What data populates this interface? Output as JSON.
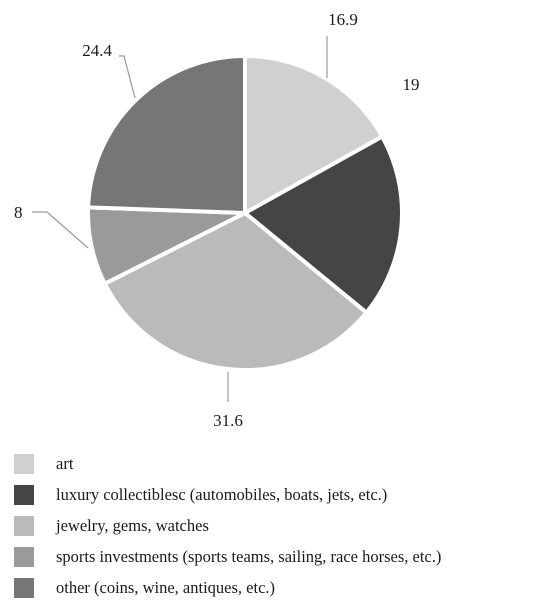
{
  "chart_data": {
    "type": "pie",
    "title": "",
    "start_angle_deg": 0,
    "direction": "clockwise",
    "slices": [
      {
        "label": "art",
        "value": 16.9,
        "value_label": "16.9",
        "color": "#d0d0d0"
      },
      {
        "label": "luxury collectiblesc (automobiles, boats, jets, etc.)",
        "value": 19,
        "value_label": "19",
        "color": "#454545"
      },
      {
        "label": "jewelry, gems, watches",
        "value": 31.6,
        "value_label": "31.6",
        "color": "#bababa"
      },
      {
        "label": "sports investments (sports teams, sailing, race horses, etc.)",
        "value": 8,
        "value_label": "8",
        "color": "#9a9a9a"
      },
      {
        "label": "other (coins, wine, antiques, etc.)",
        "value": 24.4,
        "value_label": "24.4",
        "color": "#767676"
      }
    ],
    "legend_position": "bottom-left"
  }
}
